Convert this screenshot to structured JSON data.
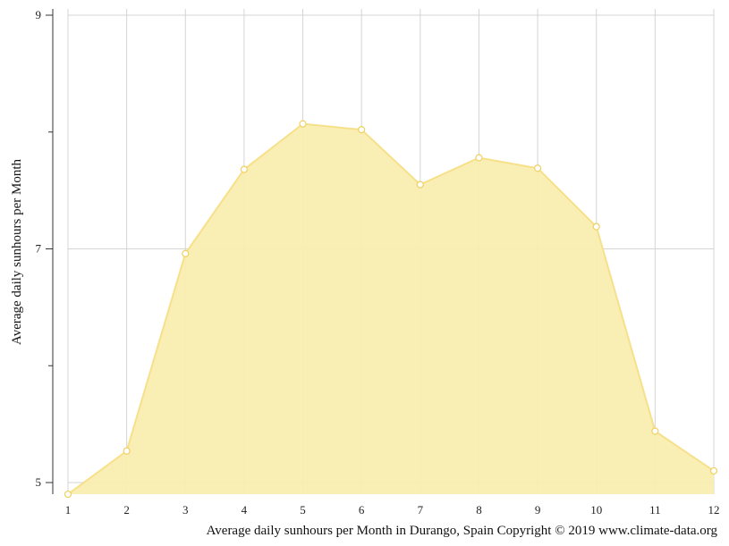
{
  "chart_data": {
    "type": "area",
    "title": "",
    "xlabel": "",
    "ylabel": "Average daily sunhours per Month",
    "caption": "Average daily sunhours per Month in Durango, Spain Copyright © 2019 www.climate-data.org",
    "x": [
      1,
      2,
      3,
      4,
      5,
      6,
      7,
      8,
      9,
      10,
      11,
      12
    ],
    "x_tick_labels": [
      "1",
      "2",
      "3",
      "4",
      "5",
      "6",
      "7",
      "8",
      "9",
      "10",
      "11",
      "12"
    ],
    "y_tick_labels": [
      "9",
      "7",
      "5"
    ],
    "y_ticks": [
      9,
      7,
      5
    ],
    "y_minor_ticks": [
      8,
      6
    ],
    "ylim": [
      5,
      9
    ],
    "series": [
      {
        "values": [
          4.9,
          5.27,
          6.96,
          7.68,
          8.07,
          8.02,
          7.55,
          7.78,
          7.69,
          7.19,
          5.44,
          5.1
        ]
      }
    ],
    "grid": true,
    "colors": {
      "fill": "#f9edb0",
      "line": "#f7e08a",
      "marker_fill": "#ffffff",
      "marker_stroke": "#f0d060",
      "grid": "#d4d4d4",
      "axis": "#333333"
    }
  }
}
